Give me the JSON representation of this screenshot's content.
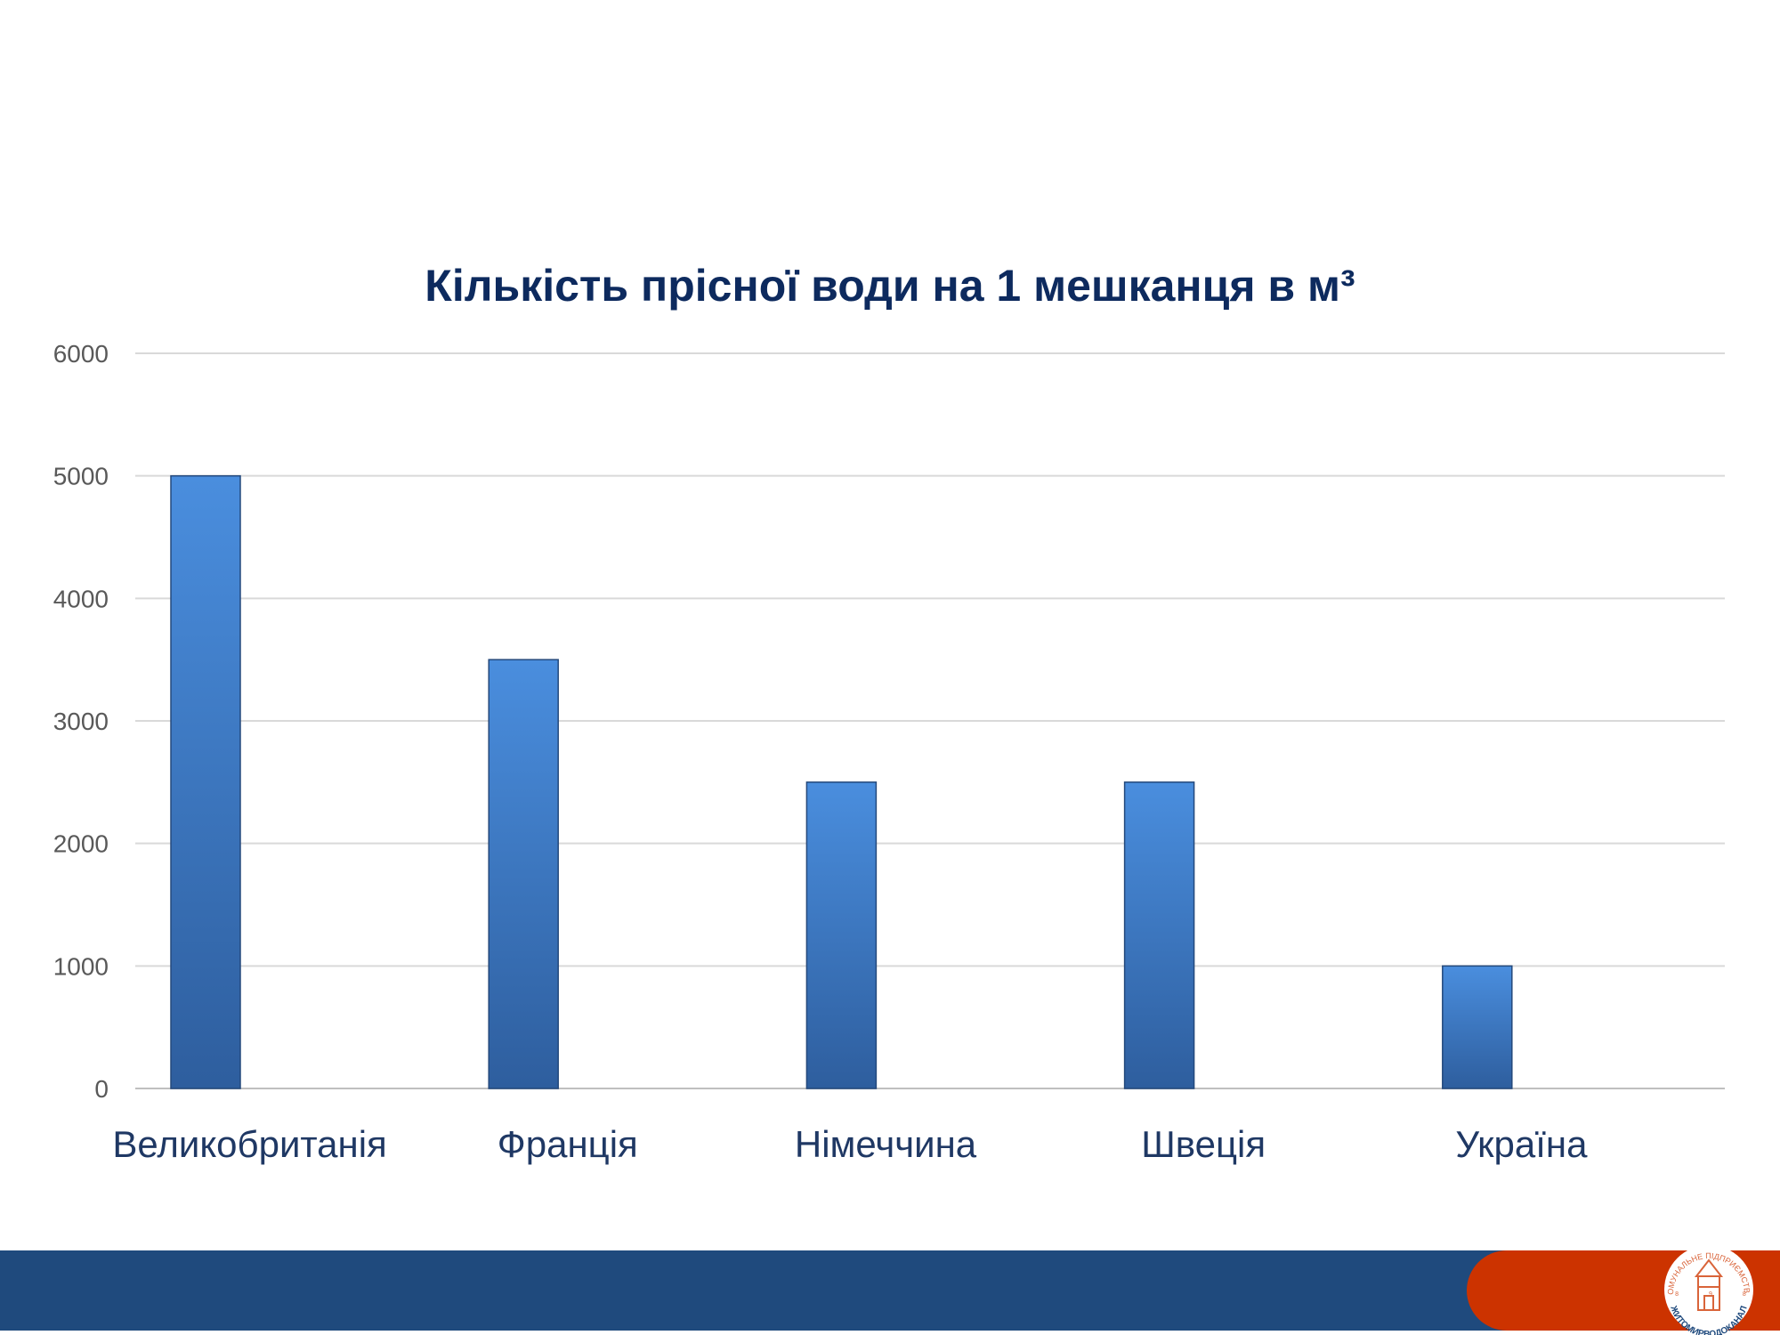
{
  "chart_data": {
    "type": "bar",
    "title": "Кількість прісної води на 1 мешканця в м³",
    "xlabel": "",
    "ylabel": "",
    "categories": [
      "Великобританія",
      "Франція",
      "Німеччина",
      "Швеція",
      "Україна"
    ],
    "values": [
      5000,
      3500,
      2500,
      2500,
      1000
    ],
    "ylim": [
      0,
      6000
    ],
    "yticks": [
      0,
      1000,
      2000,
      3000,
      4000,
      5000,
      6000
    ],
    "grid": true,
    "legend": "none"
  },
  "colors": {
    "title": "#0d2a5e",
    "category_label": "#1f3864",
    "tick_label": "#595959",
    "gridline": "#d9d9d9",
    "bar_top": "#4a8ede",
    "bar_bottom": "#2e5e9e",
    "footer_bar": "#1f4a7d",
    "footer_accent": "#cc3300",
    "logo": "#d9643a"
  },
  "logo": {
    "arc_text": "КОМУНАЛЬНЕ ПІДПРИЄМСТВО",
    "name_text": "ЖИТОМИРВОДОКАНАЛ",
    "year": "1898"
  }
}
